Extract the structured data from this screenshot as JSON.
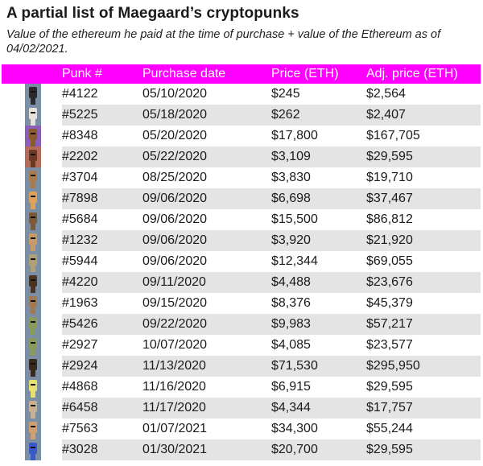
{
  "title": "A partial list of Maegaard’s cryptopunks",
  "subtitle": "Value of the ethereum he paid at the time of purchase + value of the Ethereum as of 04/02/2021.",
  "chart_data": {
    "type": "table",
    "columns": [
      "Punk #",
      "Purchase date",
      "Price (ETH)",
      "Adj. price (ETH)"
    ],
    "rows": [
      {
        "punk": "#4122",
        "date": "05/10/2020",
        "price": "$245",
        "adj": "$2,564",
        "icon_bg": "#7a8fa6",
        "icon_fg": "#2b2b2b"
      },
      {
        "punk": "#5225",
        "date": "05/18/2020",
        "price": "$262",
        "adj": "$2,407",
        "icon_bg": "#7a8fa6",
        "icon_fg": "#e9e2d8"
      },
      {
        "punk": "#8348",
        "date": "05/20/2020",
        "price": "$17,800",
        "adj": "$167,705",
        "icon_bg": "#8b5fb8",
        "icon_fg": "#8a5a2e"
      },
      {
        "punk": "#2202",
        "date": "05/22/2020",
        "price": "$3,109",
        "adj": "$29,595",
        "icon_bg": "#b56a5a",
        "icon_fg": "#6b3a22"
      },
      {
        "punk": "#3704",
        "date": "08/25/2020",
        "price": "$3,830",
        "adj": "$19,710",
        "icon_bg": "#7a8fa6",
        "icon_fg": "#a87a4e"
      },
      {
        "punk": "#7898",
        "date": "09/06/2020",
        "price": "$6,698",
        "adj": "$37,467",
        "icon_bg": "#7a8fa6",
        "icon_fg": "#e0a25a"
      },
      {
        "punk": "#5684",
        "date": "09/06/2020",
        "price": "$15,500",
        "adj": "$86,812",
        "icon_bg": "#7a8fa6",
        "icon_fg": "#7a5a3a"
      },
      {
        "punk": "#1232",
        "date": "09/06/2020",
        "price": "$3,920",
        "adj": "$21,920",
        "icon_bg": "#7a8fa6",
        "icon_fg": "#c89a6a"
      },
      {
        "punk": "#5944",
        "date": "09/06/2020",
        "price": "$12,344",
        "adj": "$69,055",
        "icon_bg": "#7a8fa6",
        "icon_fg": "#b0a078"
      },
      {
        "punk": "#4220",
        "date": "09/11/2020",
        "price": "$4,488",
        "adj": "$23,676",
        "icon_bg": "#7a8fa6",
        "icon_fg": "#4a3422"
      },
      {
        "punk": "#1963",
        "date": "09/15/2020",
        "price": "$8,376",
        "adj": "$45,379",
        "icon_bg": "#7a8fa6",
        "icon_fg": "#a07a52"
      },
      {
        "punk": "#5426",
        "date": "09/22/2020",
        "price": "$9,983",
        "adj": "$57,217",
        "icon_bg": "#7a8fa6",
        "icon_fg": "#8a9a5a"
      },
      {
        "punk": "#2927",
        "date": "10/07/2020",
        "price": "$4,085",
        "adj": "$23,577",
        "icon_bg": "#7a8fa6",
        "icon_fg": "#8a9a5a"
      },
      {
        "punk": "#2924",
        "date": "11/13/2020",
        "price": "$71,530",
        "adj": "$295,950",
        "icon_bg": "#7a8fa6",
        "icon_fg": "#3a2a1e"
      },
      {
        "punk": "#4868",
        "date": "11/16/2020",
        "price": "$6,915",
        "adj": "$29,595",
        "icon_bg": "#7a8fa6",
        "icon_fg": "#e8e070"
      },
      {
        "punk": "#6458",
        "date": "11/17/2020",
        "price": "$4,344",
        "adj": "$17,757",
        "icon_bg": "#7a8fa6",
        "icon_fg": "#c8b090"
      },
      {
        "punk": "#7563",
        "date": "01/07/2021",
        "price": "$34,300",
        "adj": "$55,244",
        "icon_bg": "#7a8fa6",
        "icon_fg": "#d0a070"
      },
      {
        "punk": "#3028",
        "date": "01/30/2021",
        "price": "$20,700",
        "adj": "$29,595",
        "icon_bg": "#7a8fa6",
        "icon_fg": "#3a5ac8"
      }
    ]
  },
  "colors": {
    "header_bg": "#ff00ff",
    "header_text": "#ffffff",
    "stripe": "#e4e4e4"
  }
}
